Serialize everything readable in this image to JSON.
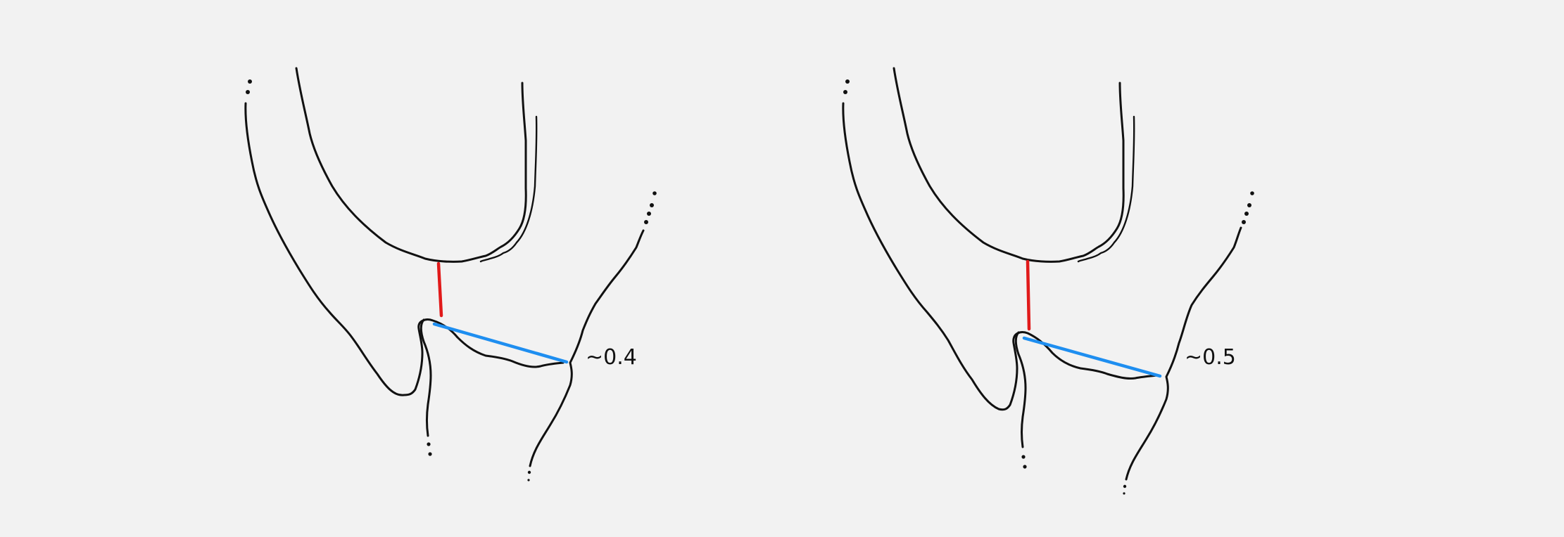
{
  "colors": {
    "background": "#f2f2f2",
    "outline": "#111111",
    "gap_line": "#e11a1a",
    "ratio_line": "#1e8ef0"
  },
  "panels": [
    {
      "label": "~0.4"
    },
    {
      "label": "~0.5"
    }
  ]
}
